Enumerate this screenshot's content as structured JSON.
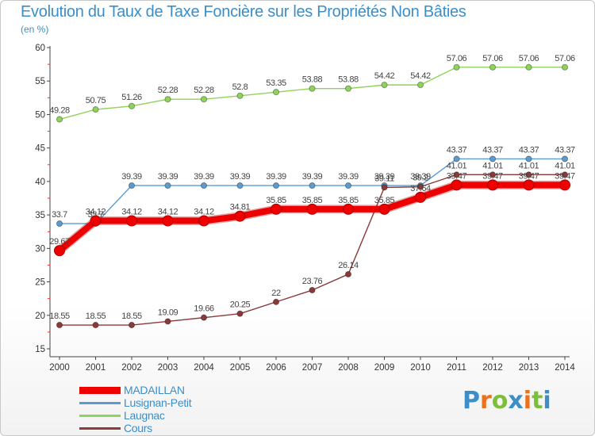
{
  "title": "Evolution du Taux de Taxe Foncière sur les Propriétés Non Bâties",
  "subtitle": "(en %)",
  "logo": {
    "text": "Proxiti",
    "colors": [
      "#3b8ec8",
      "#e8731c",
      "#7cbf3b",
      "#3b8ec8",
      "#e8731c",
      "#7cbf3b",
      "#3b8ec8"
    ]
  },
  "chart_data": {
    "type": "line",
    "title": "Evolution du Taux de Taxe Foncière sur les Propriétés Non Bâties",
    "ylabel": "(en %)",
    "xlabel": "",
    "ylim": [
      15,
      60
    ],
    "yticks": [
      15,
      20,
      25,
      30,
      35,
      40,
      45,
      50,
      55,
      60
    ],
    "grid": false,
    "x": [
      "2000",
      "2001",
      "2002",
      "2003",
      "2004",
      "2005",
      "2006",
      "2007",
      "2008",
      "2009",
      "2010",
      "2011",
      "2012",
      "2013",
      "2014"
    ],
    "series": [
      {
        "name": "MADAILLAN",
        "color": "#ee0000",
        "values": [
          29.67,
          34.12,
          34.12,
          34.12,
          34.12,
          34.81,
          35.85,
          35.85,
          35.85,
          35.85,
          37.64,
          39.47,
          39.47,
          39.47,
          39.47
        ],
        "labels": [
          "29.67",
          "34.12",
          "34.12",
          "34.12",
          "34.12",
          "34.81",
          "35.85",
          "35.85",
          "35.85",
          "35.85",
          "37.64",
          "39.47",
          "39.47",
          "39.47",
          "39.47"
        ]
      },
      {
        "name": "Lusignan-Petit",
        "color": "#5b9bd0",
        "values": [
          33.7,
          33.7,
          39.39,
          39.39,
          39.39,
          39.39,
          39.39,
          39.39,
          39.39,
          39.39,
          39.39,
          43.37,
          43.37,
          43.37,
          43.37
        ],
        "labels": [
          "33.7",
          "33.7",
          "39.39",
          "39.39",
          "39.39",
          "39.39",
          "39.39",
          "39.39",
          "39.39",
          "39.39",
          "39.39",
          "43.37",
          "43.37",
          "43.37",
          "43.37"
        ]
      },
      {
        "name": "Laugnac",
        "color": "#8fd35a",
        "values": [
          49.28,
          50.75,
          51.26,
          52.28,
          52.28,
          52.8,
          53.35,
          53.88,
          53.88,
          54.42,
          54.42,
          57.06,
          57.06,
          57.06,
          57.06
        ],
        "labels": [
          "49.28",
          "50.75",
          "51.26",
          "52.28",
          "52.28",
          "52.8",
          "53.35",
          "53.88",
          "53.88",
          "54.42",
          "54.42",
          "57.06",
          "57.06",
          "57.06",
          "57.06"
        ]
      },
      {
        "name": "Cours",
        "color": "#8b3a3a",
        "values": [
          18.55,
          18.55,
          18.55,
          19.09,
          19.66,
          20.25,
          22.0,
          23.76,
          26.14,
          39.11,
          39.2,
          41.01,
          41.01,
          41.01,
          41.01
        ],
        "labels": [
          "18.55",
          "18.55",
          "18.55",
          "19.09",
          "19.66",
          "20.25",
          "22",
          "23.76",
          "26.14",
          "39.11",
          "39.2",
          "41.01",
          "41.01",
          "41.01",
          "41.01"
        ]
      }
    ],
    "legend_position": "bottom-left"
  }
}
